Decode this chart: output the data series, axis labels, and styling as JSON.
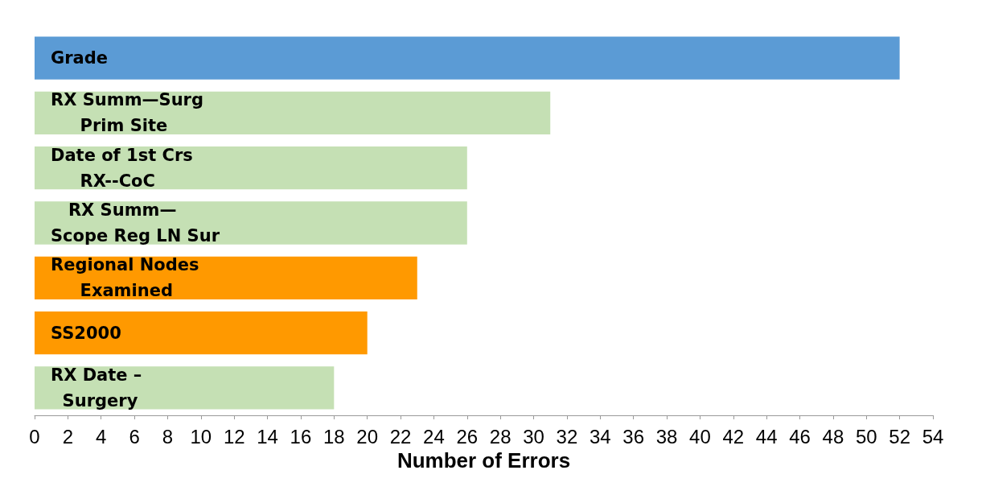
{
  "chart_data": {
    "type": "bar",
    "orientation": "horizontal",
    "xlabel": "Number of Errors",
    "categories": [
      "Grade",
      "RX Summ—Surg\n     Prim Site",
      "Date of 1st Crs\n     RX--CoC",
      "   RX Summ—\nScope Reg LN Sur",
      "Regional Nodes\n     Examined",
      "SS2000",
      "RX Date –\n  Surgery"
    ],
    "values": [
      52,
      31,
      26,
      26,
      23,
      20,
      18
    ],
    "colors": [
      "#5b9bd5",
      "#c5e0b4",
      "#c5e0b4",
      "#c5e0b4",
      "#ff9900",
      "#ff9900",
      "#c5e0b4"
    ],
    "xlim": [
      0,
      54
    ],
    "xticks": [
      0,
      2,
      4,
      6,
      8,
      10,
      12,
      14,
      16,
      18,
      20,
      22,
      24,
      26,
      28,
      30,
      32,
      34,
      36,
      38,
      40,
      42,
      44,
      46,
      48,
      50,
      52,
      54
    ],
    "grid": false
  }
}
